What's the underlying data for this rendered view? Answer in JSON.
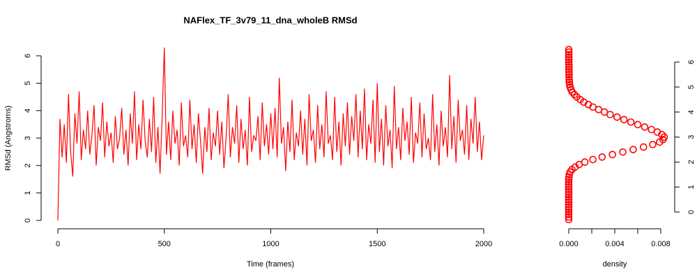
{
  "chart_data": [
    {
      "type": "line",
      "title": "NAFlex_TF_3v79_11_dna_wholeB RMSd",
      "x_label": "Time (frames)",
      "y_label": "RMSd (Angstroms)",
      "color": "#ff0000",
      "x": [
        0,
        10,
        20,
        30,
        40,
        50,
        60,
        70,
        80,
        90,
        100,
        110,
        120,
        130,
        140,
        150,
        160,
        170,
        180,
        190,
        200,
        210,
        220,
        230,
        240,
        250,
        260,
        270,
        280,
        290,
        300,
        310,
        320,
        330,
        340,
        350,
        360,
        370,
        380,
        390,
        400,
        410,
        420,
        430,
        440,
        450,
        460,
        470,
        480,
        490,
        500,
        510,
        520,
        530,
        540,
        550,
        560,
        570,
        580,
        590,
        600,
        610,
        620,
        630,
        640,
        650,
        660,
        670,
        680,
        690,
        700,
        710,
        720,
        730,
        740,
        750,
        760,
        770,
        780,
        790,
        800,
        810,
        820,
        830,
        840,
        850,
        860,
        870,
        880,
        890,
        900,
        910,
        920,
        930,
        940,
        950,
        960,
        970,
        980,
        990,
        1000,
        1010,
        1020,
        1030,
        1040,
        1050,
        1060,
        1070,
        1080,
        1090,
        1100,
        1110,
        1120,
        1130,
        1140,
        1150,
        1160,
        1170,
        1180,
        1190,
        1200,
        1210,
        1220,
        1230,
        1240,
        1250,
        1260,
        1270,
        1280,
        1290,
        1300,
        1310,
        1320,
        1330,
        1340,
        1350,
        1360,
        1370,
        1380,
        1390,
        1400,
        1410,
        1420,
        1430,
        1440,
        1450,
        1460,
        1470,
        1480,
        1490,
        1500,
        1510,
        1520,
        1530,
        1540,
        1550,
        1560,
        1570,
        1580,
        1590,
        1600,
        1610,
        1620,
        1630,
        1640,
        1650,
        1660,
        1670,
        1680,
        1690,
        1700,
        1710,
        1720,
        1730,
        1740,
        1750,
        1760,
        1770,
        1780,
        1790,
        1800,
        1810,
        1820,
        1830,
        1840,
        1850,
        1860,
        1870,
        1880,
        1890,
        1900,
        1910,
        1920,
        1930,
        1940,
        1950,
        1960,
        1970,
        1980,
        1990,
        2000
      ],
      "values": [
        0.0,
        3.7,
        2.3,
        3.5,
        2.1,
        4.6,
        2.5,
        1.6,
        3.9,
        2.8,
        4.7,
        2.2,
        3.3,
        2.6,
        4.0,
        2.4,
        3.1,
        4.2,
        2.0,
        3.4,
        2.9,
        4.3,
        2.3,
        3.6,
        2.7,
        3.2,
        2.1,
        3.8,
        2.6,
        3.0,
        4.1,
        2.4,
        3.3,
        2.0,
        3.9,
        2.8,
        4.7,
        2.2,
        3.5,
        2.6,
        4.4,
        2.9,
        2.3,
        3.7,
        2.5,
        4.5,
        2.1,
        3.4,
        1.7,
        3.8,
        6.3,
        2.4,
        3.6,
        2.2,
        4.0,
        2.8,
        3.3,
        2.0,
        4.3,
        2.7,
        3.1,
        2.3,
        4.4,
        2.6,
        3.5,
        2.1,
        3.9,
        2.9,
        1.7,
        3.4,
        2.5,
        4.1,
        2.2,
        3.2,
        2.7,
        4.0,
        2.4,
        3.6,
        1.9,
        3.0,
        4.6,
        2.3,
        3.4,
        2.8,
        4.2,
        2.1,
        3.7,
        2.6,
        3.3,
        2.0,
        4.5,
        2.5,
        3.1,
        2.9,
        3.8,
        2.2,
        4.3,
        2.7,
        3.5,
        2.4,
        3.9,
        2.6,
        4.1,
        2.3,
        5.2,
        2.8,
        3.4,
        1.8,
        3.6,
        2.5,
        4.4,
        2.2,
        3.2,
        2.7,
        4.0,
        2.4,
        3.7,
        2.0,
        4.6,
        2.9,
        3.3,
        2.1,
        4.2,
        2.6,
        3.5,
        2.3,
        4.7,
        2.8,
        3.1,
        2.2,
        4.5,
        2.5,
        3.6,
        2.0,
        3.9,
        2.7,
        4.3,
        2.4,
        3.8,
        2.9,
        4.6,
        2.3,
        4.0,
        2.6,
        4.8,
        2.2,
        3.5,
        2.8,
        4.4,
        2.1,
        5.0,
        2.5,
        3.7,
        2.0,
        4.2,
        2.7,
        3.3,
        1.9,
        4.9,
        2.6,
        3.4,
        2.2,
        4.1,
        2.9,
        3.6,
        2.4,
        4.5,
        2.1,
        3.2,
        2.8,
        4.3,
        2.3,
        3.9,
        2.6,
        3.0,
        2.2,
        4.6,
        2.5,
        3.5,
        2.0,
        4.0,
        2.7,
        3.4,
        2.3,
        5.3,
        2.6,
        3.8,
        2.1,
        4.4,
        2.9,
        3.3,
        2.4,
        4.2,
        2.2,
        3.7,
        2.8,
        4.5,
        2.5,
        3.6,
        2.2,
        3.1
      ],
      "xlim": [
        0,
        2000
      ],
      "xticks": [
        0,
        500,
        1000,
        1500,
        2000
      ],
      "ylim": [
        0,
        6
      ],
      "yticks": [
        0,
        1,
        2,
        3,
        4,
        5,
        6
      ]
    },
    {
      "type": "scatter",
      "x_label": "density",
      "color": "#ff0000",
      "y": [
        -0.3,
        -0.2,
        -0.1,
        0,
        0.1,
        0.2,
        0.3,
        0.4,
        0.5,
        0.6,
        0.7,
        0.8,
        0.9,
        1.0,
        1.1,
        1.2,
        1.3,
        1.4,
        1.5,
        1.6,
        1.7,
        1.8,
        1.9,
        2.0,
        2.1,
        2.2,
        2.3,
        2.4,
        2.5,
        2.6,
        2.7,
        2.8,
        2.9,
        3.0,
        3.1,
        3.2,
        3.3,
        3.4,
        3.5,
        3.6,
        3.7,
        3.8,
        3.9,
        4.0,
        4.1,
        4.2,
        4.3,
        4.4,
        4.5,
        4.6,
        4.7,
        4.8,
        4.9,
        5.0,
        5.1,
        5.2,
        5.3,
        5.4,
        5.5,
        5.6,
        5.7,
        5.8,
        5.9,
        6.0,
        6.1,
        6.2,
        6.3,
        6.4,
        6.5
      ],
      "x": [
        0,
        0,
        0,
        0,
        0,
        0,
        0,
        0,
        0,
        0,
        0,
        0,
        0,
        0,
        0,
        0,
        0,
        2e-05,
        5e-05,
        0.00012,
        0.00028,
        0.00055,
        0.0009,
        0.0014,
        0.0021,
        0.0029,
        0.0038,
        0.0047,
        0.0056,
        0.0065,
        0.0073,
        0.0079,
        0.0082,
        0.0083,
        0.0081,
        0.0077,
        0.0072,
        0.0066,
        0.006,
        0.0054,
        0.0048,
        0.0042,
        0.0036,
        0.0031,
        0.0026,
        0.0021,
        0.0017,
        0.0013,
        0.001,
        0.0007,
        0.0005,
        0.0003,
        0.0002,
        0.00012,
        8e-05,
        5e-05,
        4e-05,
        3e-05,
        3e-05,
        2e-05,
        2e-05,
        2e-05,
        2e-05,
        1e-05,
        1e-05,
        1e-05,
        1e-05,
        1e-05,
        0
      ],
      "xlim": [
        0,
        0.008
      ],
      "xticks": [
        {
          "value": 0,
          "label": "0.000"
        },
        {
          "value": 0.004,
          "label": "0.004"
        },
        {
          "value": 0.008,
          "label": "0.008"
        }
      ],
      "xminorticks": [
        0.002,
        0.006
      ],
      "ylim": [
        0,
        6
      ],
      "yticks": [
        0,
        1,
        2,
        3,
        4,
        5,
        6
      ]
    }
  ]
}
